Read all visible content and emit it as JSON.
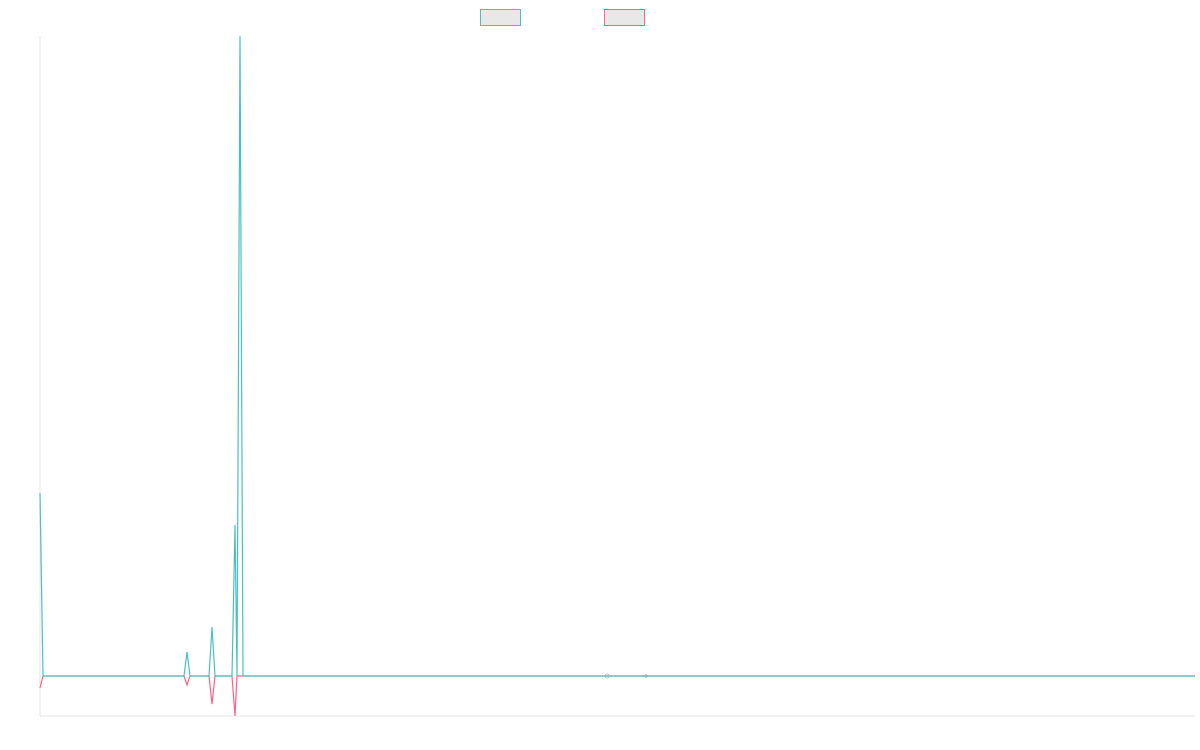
{
  "chart_data": {
    "type": "line",
    "x": [
      0,
      3,
      144,
      147,
      150,
      169,
      172,
      175,
      192,
      195,
      197,
      200,
      203,
      1155
    ],
    "xlim": [
      0,
      1155
    ],
    "ylim": [
      -40,
      640
    ],
    "series": [
      {
        "color": "#4bc0c0",
        "values": [
          183,
          0,
          0,
          24,
          0,
          0,
          49,
          0,
          0,
          151,
          0,
          640,
          0,
          0
        ]
      },
      {
        "color": "#ff6384",
        "values": [
          -12,
          0,
          0,
          -9,
          0,
          0,
          -28,
          0,
          0,
          -40,
          0,
          0,
          0,
          0
        ]
      }
    ]
  }
}
